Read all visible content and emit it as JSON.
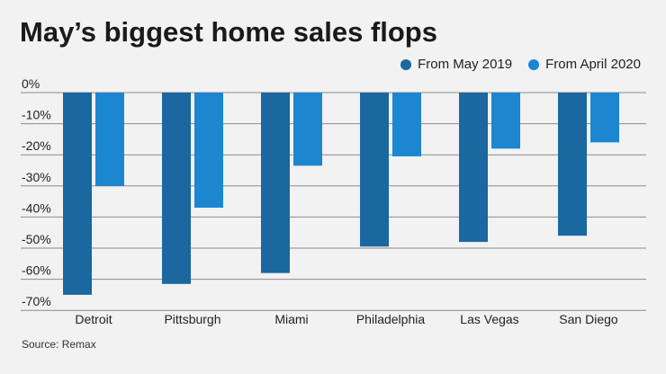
{
  "chart_data": {
    "type": "bar",
    "title": "May’s biggest home sales flops",
    "categories": [
      "Detroit",
      "Pittsburgh",
      "Miami",
      "Philadelphia",
      "Las Vegas",
      "San Diego"
    ],
    "series": [
      {
        "name": "From May 2019",
        "color": "#1b67a0",
        "values": [
          -65,
          -61.5,
          -58,
          -49.5,
          -48,
          -46
        ]
      },
      {
        "name": "From April 2020",
        "color": "#1c86d1",
        "values": [
          -30,
          -37,
          -23.5,
          -20.5,
          -18,
          -16
        ]
      }
    ],
    "yticks": [
      "0%",
      "-10%",
      "-20%",
      "-30%",
      "-40%",
      "-50%",
      "-60%",
      "-70%"
    ],
    "ylim": [
      -70,
      0
    ],
    "grid": true,
    "legend": "top-right",
    "source": "Source: Remax"
  }
}
